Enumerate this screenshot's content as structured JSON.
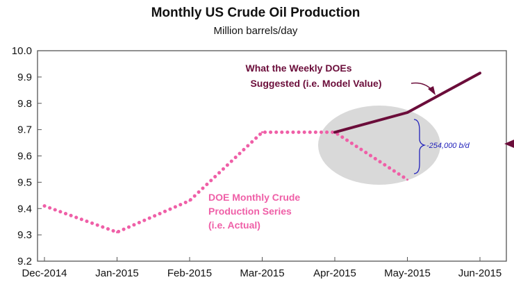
{
  "chart_data": {
    "type": "line",
    "title": "Monthly US Crude Oil Production",
    "subtitle": "Million barrels/day",
    "xlabel": "",
    "ylabel": "",
    "categories": [
      "Dec-2014",
      "Jan-2015",
      "Feb-2015",
      "Mar-2015",
      "Apr-2015",
      "May-2015",
      "Jun-2015"
    ],
    "ylim": [
      9.2,
      10.0
    ],
    "yticks": [
      "9.2",
      "9.3",
      "9.4",
      "9.5",
      "9.6",
      "9.7",
      "9.8",
      "9.9",
      "10.0"
    ],
    "grid": false,
    "legend": "none",
    "series": [
      {
        "name": "DOE Monthly Crude Production Series (i.e. Actual)",
        "style": "dotted",
        "color": "#ef5fa7",
        "x": [
          "Dec-2014",
          "Jan-2015",
          "Feb-2015",
          "Mar-2015",
          "Apr-2015",
          "May-2015"
        ],
        "values": [
          9.41,
          9.31,
          9.43,
          9.69,
          9.69,
          9.51
        ]
      },
      {
        "name": "What the Weekly DOEs Suggested (i.e. Model Value)",
        "style": "solid",
        "color": "#6b0d3a",
        "x": [
          "Apr-2015",
          "May-2015",
          "Jun-2015"
        ],
        "values": [
          9.69,
          9.765,
          9.915
        ]
      }
    ],
    "annotations": {
      "model_line1": "What the Weekly DOEs",
      "model_line2": "Suggested (i.e. Model Value)",
      "actual_line1": "DOE Monthly Crude",
      "actual_line2": "Production Series",
      "actual_line3": "(i.e. Actual)",
      "difference": "-254,000 b/d"
    },
    "colors": {
      "actual": "#ef5fa7",
      "model": "#6b0d3a",
      "ellipse": "#d9d9d9",
      "bracket": "#2222bb",
      "axis": "#555555"
    }
  }
}
